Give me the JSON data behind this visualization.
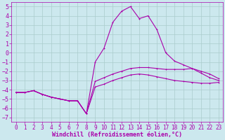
{
  "xlabel": "Windchill (Refroidissement éolien,°C)",
  "bg_color": "#cce8ee",
  "line_color": "#aa00aa",
  "grid_color": "#aacccc",
  "xlim": [
    -0.5,
    23.5
  ],
  "ylim": [
    -7.5,
    5.5
  ],
  "xticks": [
    0,
    1,
    2,
    3,
    4,
    5,
    6,
    7,
    8,
    9,
    10,
    11,
    12,
    13,
    14,
    15,
    16,
    17,
    18,
    19,
    20,
    21,
    22,
    23
  ],
  "yticks": [
    -7,
    -6,
    -5,
    -4,
    -3,
    -2,
    -1,
    0,
    1,
    2,
    3,
    4,
    5
  ],
  "main_x": [
    0,
    1,
    2,
    3,
    4,
    5,
    6,
    7,
    8,
    9,
    10,
    11,
    12,
    13,
    14,
    15,
    16,
    17,
    18,
    19,
    20,
    21,
    22,
    23
  ],
  "main_y": [
    -4.3,
    -4.3,
    -4.1,
    -4.5,
    -4.8,
    -5.0,
    -5.2,
    -5.2,
    -6.6,
    -1.0,
    0.5,
    3.3,
    4.5,
    5.0,
    3.7,
    4.0,
    2.5,
    0.0,
    -0.9,
    -1.3,
    -1.7,
    -2.2,
    -2.7,
    -3.0
  ],
  "upper_x": [
    0,
    1,
    2,
    3,
    4,
    5,
    6,
    7,
    8,
    9,
    10,
    11,
    12,
    13,
    14,
    15,
    16,
    17,
    18,
    19,
    20,
    21,
    22,
    23
  ],
  "upper_y": [
    -4.3,
    -4.3,
    -4.1,
    -4.5,
    -4.8,
    -5.0,
    -5.2,
    -5.2,
    -6.6,
    -3.1,
    -2.7,
    -2.3,
    -2.0,
    -1.7,
    -1.6,
    -1.6,
    -1.7,
    -1.8,
    -1.8,
    -1.8,
    -1.7,
    -2.0,
    -2.3,
    -2.8
  ],
  "lower_x": [
    0,
    1,
    2,
    3,
    4,
    5,
    6,
    7,
    8,
    9,
    10,
    11,
    12,
    13,
    14,
    15,
    16,
    17,
    18,
    19,
    20,
    21,
    22,
    23
  ],
  "lower_y": [
    -4.3,
    -4.3,
    -4.1,
    -4.5,
    -4.8,
    -5.0,
    -5.2,
    -5.2,
    -6.6,
    -3.7,
    -3.4,
    -3.0,
    -2.7,
    -2.4,
    -2.3,
    -2.4,
    -2.6,
    -2.8,
    -3.0,
    -3.1,
    -3.2,
    -3.3,
    -3.3,
    -3.2
  ],
  "font_size": 5.5,
  "marker_size": 2.0,
  "line_width": 0.8
}
